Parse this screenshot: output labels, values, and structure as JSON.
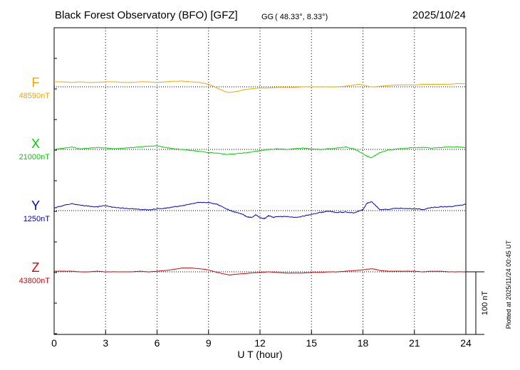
{
  "header": {
    "title": "Black Forest Observatory (BFO)  [GFZ]",
    "coord_system": "GG",
    "coords": "( 48.33°,   8.33°)",
    "date": "2025/10/24"
  },
  "side_note": "Plotted at 2025/11/24 00:45 UT",
  "scale_label": "100 nT",
  "chart_data": {
    "type": "line",
    "xlabel": "U T (hour)",
    "xlim": [
      0,
      24
    ],
    "xticks": [
      "0",
      "3",
      "6",
      "9",
      "12",
      "15",
      "18",
      "21",
      "24"
    ],
    "scale_bar_nT": 100,
    "grid": true,
    "series": [
      {
        "name": "F",
        "baseline_label": "48590nT",
        "baseline_nT": 48590,
        "color": "#f0a800",
        "x": [
          0,
          0.5,
          1,
          1.5,
          2,
          2.5,
          3,
          3.5,
          4,
          4.5,
          5,
          5.5,
          6,
          6.5,
          7,
          7.5,
          8,
          8.5,
          9,
          9.25,
          9.5,
          9.75,
          10,
          10.25,
          10.5,
          10.75,
          11,
          11.5,
          12,
          12.5,
          13,
          13.5,
          14,
          14.5,
          15,
          15.5,
          16,
          16.5,
          17,
          17.25,
          17.5,
          17.75,
          18,
          18.25,
          18.5,
          18.75,
          19,
          19.5,
          20,
          20.5,
          21,
          21.5,
          22,
          22.5,
          23,
          23.5,
          24
        ],
        "y": [
          48598,
          48598,
          48597,
          48598,
          48597,
          48597,
          48598,
          48598,
          48597,
          48597,
          48598,
          48598,
          48597,
          48598,
          48599,
          48599,
          48598,
          48597,
          48594,
          48591,
          48588,
          48585,
          48582,
          48581,
          48582,
          48583,
          48585,
          48587,
          48588,
          48588,
          48589,
          48589,
          48589,
          48590,
          48590,
          48590,
          48590,
          48590,
          48591,
          48592,
          48593,
          48594,
          48593,
          48591,
          48590,
          48590,
          48591,
          48592,
          48593,
          48593,
          48593,
          48594,
          48594,
          48594,
          48594,
          48595,
          48595
        ]
      },
      {
        "name": "X",
        "baseline_label": "21000nT",
        "baseline_nT": 21000,
        "color": "#00d000",
        "x": [
          0,
          0.5,
          1,
          1.5,
          2,
          2.5,
          3,
          3.5,
          4,
          4.5,
          5,
          5.5,
          6,
          6.5,
          7,
          7.5,
          8,
          8.5,
          9,
          9.5,
          10,
          10.5,
          11,
          11.5,
          12,
          12.5,
          13,
          13.5,
          14,
          14.5,
          15,
          15.5,
          16,
          16.5,
          17,
          17.5,
          18,
          18.25,
          18.5,
          18.75,
          19,
          19.5,
          20,
          20.5,
          21,
          21.5,
          22,
          22.5,
          23,
          23.5,
          24
        ],
        "y": [
          21000,
          21002,
          21004,
          21001,
          21002,
          21003,
          21002,
          21001,
          21002,
          21003,
          21004,
          21005,
          21006,
          21003,
          21001,
          21000,
          20998,
          20997,
          20995,
          20994,
          20992,
          20993,
          20994,
          20996,
          20998,
          21000,
          21001,
          21000,
          21001,
          21002,
          21001,
          21000,
          21001,
          21002,
          21004,
          21001,
          20993,
          20989,
          20987,
          20991,
          20995,
          20999,
          21001,
          21002,
          21003,
          21003,
          21002,
          21003,
          21004,
          21004,
          21003
        ]
      },
      {
        "name": "Y",
        "baseline_label": "1250nT",
        "baseline_nT": 1250,
        "color": "#0000d0",
        "x": [
          0,
          0.5,
          1,
          1.5,
          2,
          2.5,
          3,
          3.5,
          4,
          4.5,
          5,
          5.5,
          6,
          6.5,
          7,
          7.5,
          8,
          8.5,
          9,
          9.5,
          10,
          10.5,
          11,
          11.25,
          11.5,
          11.75,
          12,
          12.25,
          12.5,
          12.75,
          13,
          13.5,
          14,
          14.5,
          15,
          15.5,
          16,
          16.5,
          17,
          17.5,
          18,
          18.25,
          18.5,
          18.75,
          19,
          19.5,
          20,
          20.5,
          21,
          21.5,
          22,
          22.5,
          23,
          23.5,
          24
        ],
        "y": [
          1254,
          1258,
          1261,
          1259,
          1257,
          1256,
          1258,
          1255,
          1254,
          1253,
          1252,
          1251,
          1253,
          1254,
          1256,
          1258,
          1261,
          1263,
          1263,
          1260,
          1253,
          1248,
          1244,
          1240,
          1239,
          1243,
          1239,
          1237,
          1242,
          1239,
          1240,
          1241,
          1239,
          1241,
          1244,
          1247,
          1249,
          1247,
          1248,
          1246,
          1252,
          1262,
          1264,
          1258,
          1251,
          1252,
          1254,
          1253,
          1253,
          1252,
          1255,
          1256,
          1256,
          1258,
          1260
        ]
      },
      {
        "name": "Z",
        "baseline_label": "43800nT",
        "baseline_nT": 43800,
        "color": "#e00000",
        "x": [
          0,
          0.5,
          1,
          1.5,
          2,
          2.5,
          3,
          3.5,
          4,
          4.5,
          5,
          5.5,
          6,
          6.5,
          7,
          7.5,
          8,
          8.5,
          9,
          9.5,
          10,
          10.25,
          10.5,
          11,
          11.5,
          12,
          12.5,
          13,
          13.5,
          14,
          14.5,
          15,
          15.5,
          16,
          16.5,
          17,
          17.5,
          18,
          18.5,
          18.75,
          19,
          19.5,
          20,
          20.5,
          21,
          21.5,
          22,
          22.5,
          23,
          23.5,
          24
        ],
        "y": [
          43801,
          43801,
          43801,
          43800,
          43800,
          43801,
          43800,
          43800,
          43800,
          43800,
          43801,
          43800,
          43801,
          43802,
          43804,
          43806,
          43806,
          43805,
          43803,
          43799,
          43796,
          43795,
          43796,
          43797,
          43798,
          43799,
          43800,
          43799,
          43798,
          43798,
          43798,
          43799,
          43799,
          43800,
          43800,
          43801,
          43802,
          43803,
          43805,
          43804,
          43802,
          43801,
          43801,
          43801,
          43801,
          43800,
          43801,
          43801,
          43800,
          43800,
          43800
        ]
      }
    ]
  }
}
